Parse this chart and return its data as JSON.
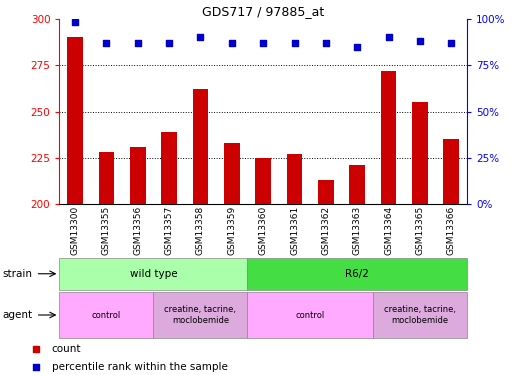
{
  "title": "GDS717 / 97885_at",
  "samples": [
    "GSM13300",
    "GSM13355",
    "GSM13356",
    "GSM13357",
    "GSM13358",
    "GSM13359",
    "GSM13360",
    "GSM13361",
    "GSM13362",
    "GSM13363",
    "GSM13364",
    "GSM13365",
    "GSM13366"
  ],
  "counts": [
    290,
    228,
    231,
    239,
    262,
    233,
    225,
    227,
    213,
    221,
    272,
    255,
    235
  ],
  "percentile_ranks": [
    98,
    87,
    87,
    87,
    90,
    87,
    87,
    87,
    87,
    85,
    90,
    88,
    87
  ],
  "bar_color": "#cc0000",
  "dot_color": "#0000cc",
  "ylim_left": [
    200,
    300
  ],
  "ylim_right": [
    0,
    100
  ],
  "yticks_left": [
    200,
    225,
    250,
    275,
    300
  ],
  "yticks_right": [
    0,
    25,
    50,
    75,
    100
  ],
  "grid_values": [
    225,
    250,
    275
  ],
  "strain_groups": [
    {
      "label": "wild type",
      "start": 0,
      "end": 6,
      "color": "#aaffaa"
    },
    {
      "label": "R6/2",
      "start": 6,
      "end": 13,
      "color": "#44dd44"
    }
  ],
  "agent_groups": [
    {
      "label": "control",
      "start": 0,
      "end": 3,
      "color": "#ffaaff"
    },
    {
      "label": "creatine, tacrine,\nmoclobemide",
      "start": 3,
      "end": 6,
      "color": "#ddaadd"
    },
    {
      "label": "control",
      "start": 6,
      "end": 10,
      "color": "#ffaaff"
    },
    {
      "label": "creatine, tacrine,\nmoclobemide",
      "start": 10,
      "end": 13,
      "color": "#ddaadd"
    }
  ],
  "strain_label": "strain",
  "agent_label": "agent",
  "legend_count_label": "count",
  "legend_percentile_label": "percentile rank within the sample"
}
